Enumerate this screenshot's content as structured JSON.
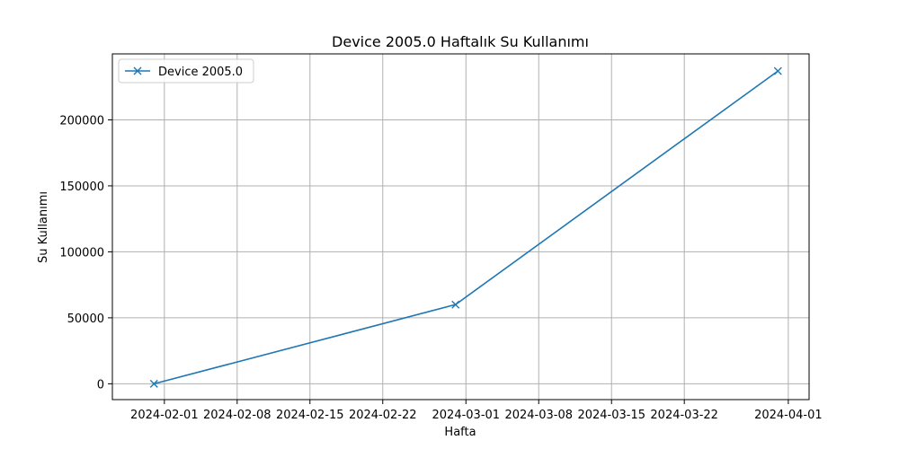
{
  "chart_data": {
    "type": "line",
    "title": "Device 2005.0 Haftalık Su Kullanımı",
    "xlabel": "Hafta",
    "ylabel": "Su Kullanımı",
    "x_type": "date",
    "xlim": [
      "2024-01-27",
      "2024-04-03"
    ],
    "ylim": [
      -12000,
      250000
    ],
    "x_ticks": [
      "2024-02-01",
      "2024-02-08",
      "2024-02-15",
      "2024-02-22",
      "2024-03-01",
      "2024-03-08",
      "2024-03-15",
      "2024-03-22",
      "2024-04-01"
    ],
    "y_ticks": [
      0,
      50000,
      100000,
      150000,
      200000
    ],
    "grid": true,
    "legend_position": "top-left",
    "colors": {
      "series": "#1f77b4",
      "grid": "#b0b0b0",
      "axis": "#000000"
    },
    "series": [
      {
        "name": "Device 2005.0",
        "marker": "x",
        "x": [
          "2024-01-31",
          "2024-02-29",
          "2024-03-31"
        ],
        "y": [
          0,
          60000,
          237000
        ]
      }
    ]
  }
}
